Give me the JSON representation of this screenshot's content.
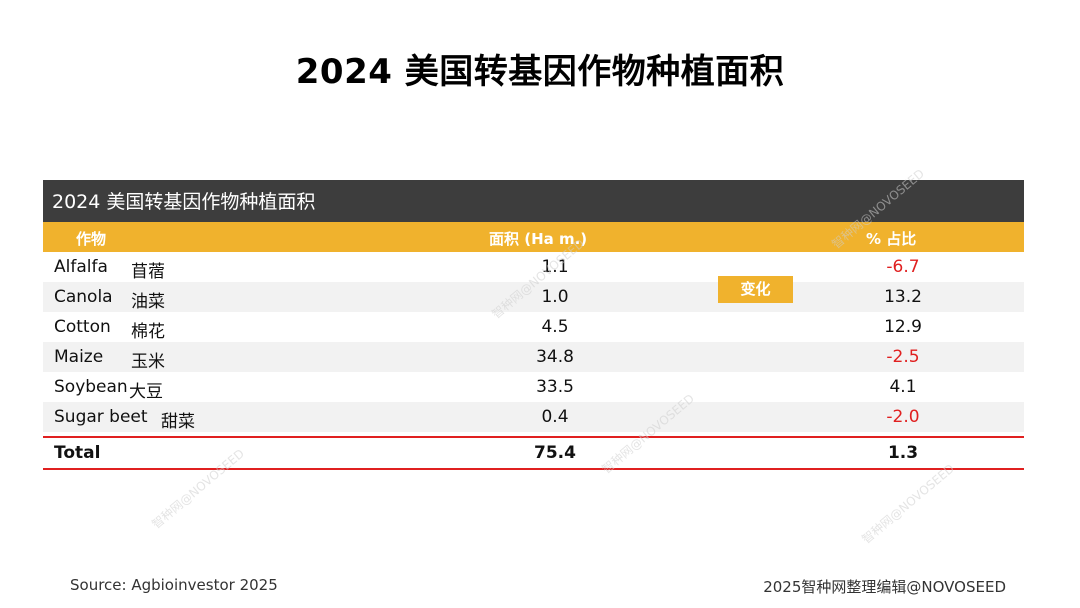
{
  "title": "2024 美国转基因作物种植面积",
  "table": {
    "caption": "2024 美国转基因作物种植面积",
    "headers": {
      "crop": "作物",
      "area": "面积 (Ha m.)",
      "pct": "% 占比"
    },
    "change_label": "变化",
    "rows": [
      {
        "en": "Alfalfa",
        "cn": "苜蓿",
        "area": "1.1",
        "pct": "-6.7"
      },
      {
        "en": "Canola",
        "cn": "油菜",
        "area": "1.0",
        "pct": "13.2"
      },
      {
        "en": "Cotton",
        "cn": "棉花",
        "area": "4.5",
        "pct": "12.9"
      },
      {
        "en": "Maize",
        "cn": "玉米",
        "area": "34.8",
        "pct": "-2.5"
      },
      {
        "en": "Soybean",
        "cn": "大豆",
        "area": "33.5",
        "pct": "4.1"
      },
      {
        "en": "Sugar beet",
        "cn": "甜菜",
        "area": "0.4",
        "pct": "-2.0"
      }
    ],
    "total": {
      "label": "Total",
      "area": "75.4",
      "pct": "1.3"
    }
  },
  "watermark": "智种网@NOVOSEED",
  "footer": {
    "source": "Source: Agbioinvestor 2025",
    "credit": "2025智种网整理编辑@NOVOSEED"
  },
  "colors": {
    "header": "#f0b22d",
    "caption_bg": "#3d3d3d",
    "negative": "#e02020"
  }
}
